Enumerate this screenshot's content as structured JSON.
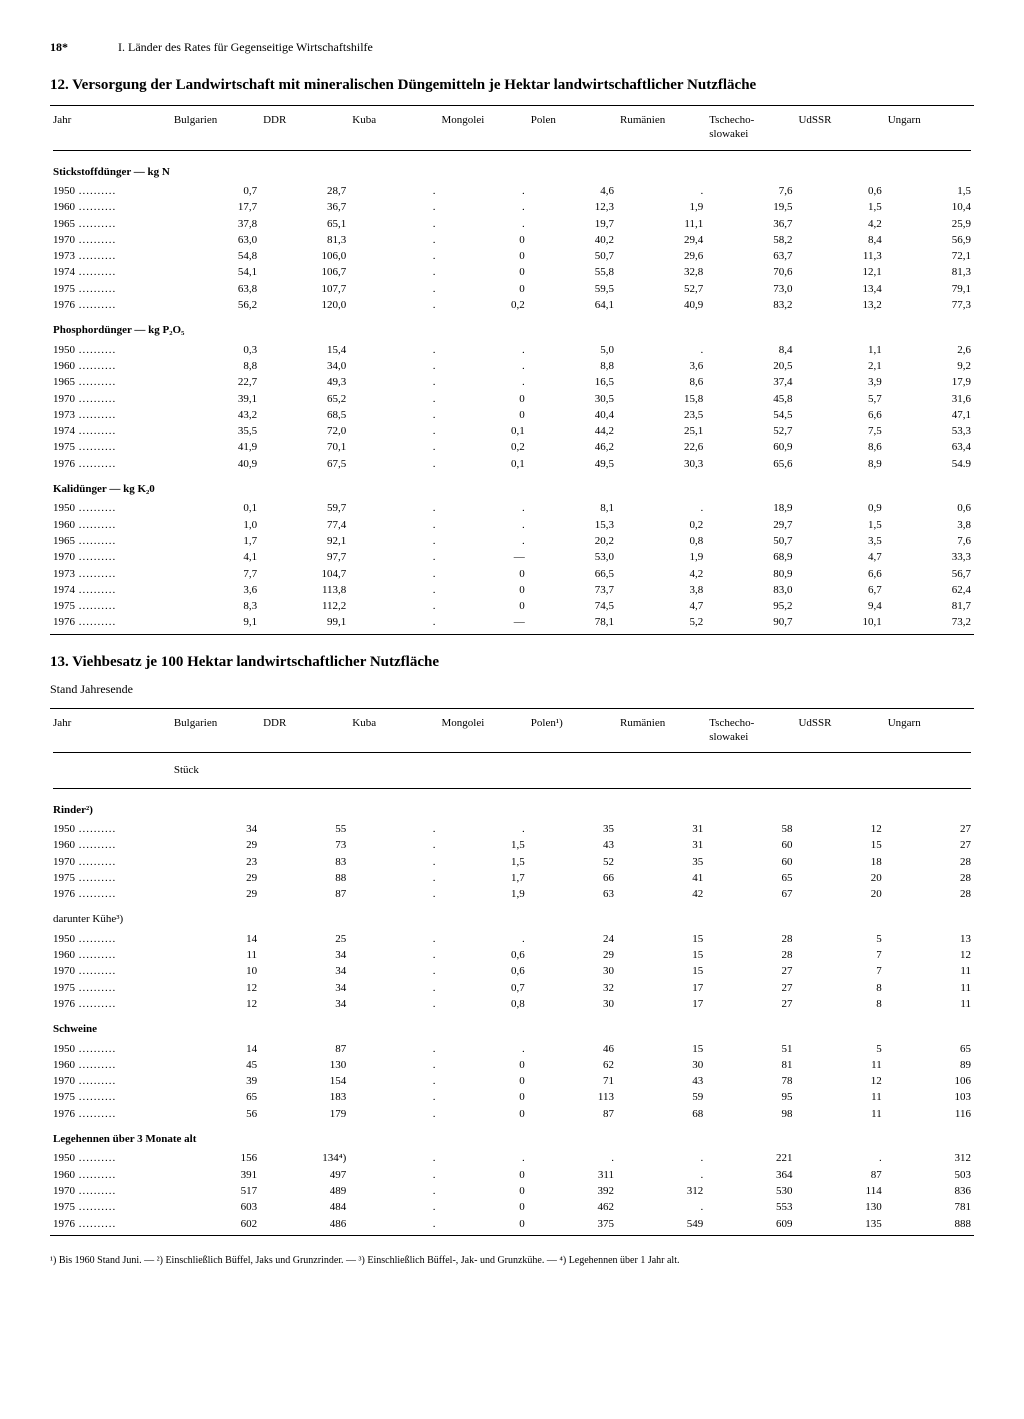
{
  "page_number": "18*",
  "chapter": "I. Länder des Rates für Gegenseitige Wirtschaftshilfe",
  "table12": {
    "title": "12. Versorgung der Landwirtschaft mit mineralischen Düngemitteln je Hektar landwirtschaftlicher Nutzfläche",
    "columns": [
      "Jahr",
      "Bulgarien",
      "DDR",
      "Kuba",
      "Mongolei",
      "Polen",
      "Rumänien",
      "Tschecho-\nslowakei",
      "UdSSR",
      "Ungarn"
    ],
    "sections": [
      {
        "header": "Stickstoffdünger — kg N",
        "rows": [
          [
            "1950",
            "0,7",
            "28,7",
            ".",
            ".",
            "4,6",
            ".",
            "7,6",
            "0,6",
            "1,5"
          ],
          [
            "1960",
            "17,7",
            "36,7",
            ".",
            ".",
            "12,3",
            "1,9",
            "19,5",
            "1,5",
            "10,4"
          ],
          [
            "1965",
            "37,8",
            "65,1",
            ".",
            ".",
            "19,7",
            "11,1",
            "36,7",
            "4,2",
            "25,9"
          ],
          [
            "1970",
            "63,0",
            "81,3",
            ".",
            "0",
            "40,2",
            "29,4",
            "58,2",
            "8,4",
            "56,9"
          ],
          [
            "1973",
            "54,8",
            "106,0",
            ".",
            "0",
            "50,7",
            "29,6",
            "63,7",
            "11,3",
            "72,1"
          ],
          [
            "1974",
            "54,1",
            "106,7",
            ".",
            "0",
            "55,8",
            "32,8",
            "70,6",
            "12,1",
            "81,3"
          ],
          [
            "1975",
            "63,8",
            "107,7",
            ".",
            "0",
            "59,5",
            "52,7",
            "73,0",
            "13,4",
            "79,1"
          ],
          [
            "1976",
            "56,2",
            "120,0",
            ".",
            "0,2",
            "64,1",
            "40,9",
            "83,2",
            "13,2",
            "77,3"
          ]
        ]
      },
      {
        "header": "Phosphordünger — kg P₂O₅",
        "rows": [
          [
            "1950",
            "0,3",
            "15,4",
            ".",
            ".",
            "5,0",
            ".",
            "8,4",
            "1,1",
            "2,6"
          ],
          [
            "1960",
            "8,8",
            "34,0",
            ".",
            ".",
            "8,8",
            "3,6",
            "20,5",
            "2,1",
            "9,2"
          ],
          [
            "1965",
            "22,7",
            "49,3",
            ".",
            ".",
            "16,5",
            "8,6",
            "37,4",
            "3,9",
            "17,9"
          ],
          [
            "1970",
            "39,1",
            "65,2",
            ".",
            "0",
            "30,5",
            "15,8",
            "45,8",
            "5,7",
            "31,6"
          ],
          [
            "1973",
            "43,2",
            "68,5",
            ".",
            "0",
            "40,4",
            "23,5",
            "54,5",
            "6,6",
            "47,1"
          ],
          [
            "1974",
            "35,5",
            "72,0",
            ".",
            "0,1",
            "44,2",
            "25,1",
            "52,7",
            "7,5",
            "53,3"
          ],
          [
            "1975",
            "41,9",
            "70,1",
            ".",
            "0,2",
            "46,2",
            "22,6",
            "60,9",
            "8,6",
            "63,4"
          ],
          [
            "1976",
            "40,9",
            "67,5",
            ".",
            "0,1",
            "49,5",
            "30,3",
            "65,6",
            "8,9",
            "54.9"
          ]
        ]
      },
      {
        "header": "Kalidünger — kg K₂0",
        "rows": [
          [
            "1950",
            "0,1",
            "59,7",
            ".",
            ".",
            "8,1",
            ".",
            "18,9",
            "0,9",
            "0,6"
          ],
          [
            "1960",
            "1,0",
            "77,4",
            ".",
            ".",
            "15,3",
            "0,2",
            "29,7",
            "1,5",
            "3,8"
          ],
          [
            "1965",
            "1,7",
            "92,1",
            ".",
            ".",
            "20,2",
            "0,8",
            "50,7",
            "3,5",
            "7,6"
          ],
          [
            "1970",
            "4,1",
            "97,7",
            ".",
            "—",
            "53,0",
            "1,9",
            "68,9",
            "4,7",
            "33,3"
          ],
          [
            "1973",
            "7,7",
            "104,7",
            ".",
            "0",
            "66,5",
            "4,2",
            "80,9",
            "6,6",
            "56,7"
          ],
          [
            "1974",
            "3,6",
            "113,8",
            ".",
            "0",
            "73,7",
            "3,8",
            "83,0",
            "6,7",
            "62,4"
          ],
          [
            "1975",
            "8,3",
            "112,2",
            ".",
            "0",
            "74,5",
            "4,7",
            "95,2",
            "9,4",
            "81,7"
          ],
          [
            "1976",
            "9,1",
            "99,1",
            ".",
            "—",
            "78,1",
            "5,2",
            "90,7",
            "10,1",
            "73,2"
          ]
        ]
      }
    ]
  },
  "table13": {
    "title": "13. Viehbesatz je 100 Hektar landwirtschaftlicher Nutzfläche",
    "subtitle": "Stand Jahresende",
    "columns": [
      "Jahr",
      "Bulgarien",
      "DDR",
      "Kuba",
      "Mongolei",
      "Polen¹)",
      "Rumänien",
      "Tschecho-\nslowakei",
      "UdSSR",
      "Ungarn"
    ],
    "unit": "Stück",
    "sections": [
      {
        "header": "Rinder²)",
        "bold": true,
        "rows": [
          [
            "1950",
            "34",
            "55",
            ".",
            ".",
            "35",
            "31",
            "58",
            "12",
            "27"
          ],
          [
            "1960",
            "29",
            "73",
            ".",
            "1,5",
            "43",
            "31",
            "60",
            "15",
            "27"
          ],
          [
            "1970",
            "23",
            "83",
            ".",
            "1,5",
            "52",
            "35",
            "60",
            "18",
            "28"
          ],
          [
            "1975",
            "29",
            "88",
            ".",
            "1,7",
            "66",
            "41",
            "65",
            "20",
            "28"
          ],
          [
            "1976",
            "29",
            "87",
            ".",
            "1,9",
            "63",
            "42",
            "67",
            "20",
            "28"
          ]
        ]
      },
      {
        "header": "darunter Kühe³)",
        "bold": false,
        "rows": [
          [
            "1950",
            "14",
            "25",
            ".",
            ".",
            "24",
            "15",
            "28",
            "5",
            "13"
          ],
          [
            "1960",
            "11",
            "34",
            ".",
            "0,6",
            "29",
            "15",
            "28",
            "7",
            "12"
          ],
          [
            "1970",
            "10",
            "34",
            ".",
            "0,6",
            "30",
            "15",
            "27",
            "7",
            "11"
          ],
          [
            "1975",
            "12",
            "34",
            ".",
            "0,7",
            "32",
            "17",
            "27",
            "8",
            "11"
          ],
          [
            "1976",
            "12",
            "34",
            ".",
            "0,8",
            "30",
            "17",
            "27",
            "8",
            "11"
          ]
        ]
      },
      {
        "header": "Schweine",
        "bold": true,
        "rows": [
          [
            "1950",
            "14",
            "87",
            ".",
            ".",
            "46",
            "15",
            "51",
            "5",
            "65"
          ],
          [
            "1960",
            "45",
            "130",
            ".",
            "0",
            "62",
            "30",
            "81",
            "11",
            "89"
          ],
          [
            "1970",
            "39",
            "154",
            ".",
            "0",
            "71",
            "43",
            "78",
            "12",
            "106"
          ],
          [
            "1975",
            "65",
            "183",
            ".",
            "0",
            "113",
            "59",
            "95",
            "11",
            "103"
          ],
          [
            "1976",
            "56",
            "179",
            ".",
            "0",
            "87",
            "68",
            "98",
            "11",
            "116"
          ]
        ]
      },
      {
        "header": "Legehennen über 3 Monate alt",
        "bold": true,
        "rows": [
          [
            "1950",
            "156",
            "134⁴)",
            ".",
            ".",
            ".",
            ".",
            "221",
            ".",
            "312"
          ],
          [
            "1960",
            "391",
            "497",
            ".",
            "0",
            "311",
            ".",
            "364",
            "87",
            "503"
          ],
          [
            "1970",
            "517",
            "489",
            ".",
            "0",
            "392",
            "312",
            "530",
            "114",
            "836"
          ],
          [
            "1975",
            "603",
            "484",
            ".",
            "0",
            "462",
            ".",
            "553",
            "130",
            "781"
          ],
          [
            "1976",
            "602",
            "486",
            ".",
            "0",
            "375",
            "549",
            "609",
            "135",
            "888"
          ]
        ]
      }
    ]
  },
  "footnotes": "¹) Bis 1960 Stand Juni. — ²) Einschließlich Büffel, Jaks und Grunzrinder. — ³) Einschließlich Büffel-, Jak- und Grunzkühe. — ⁴) Legehennen über 1 Jahr alt."
}
